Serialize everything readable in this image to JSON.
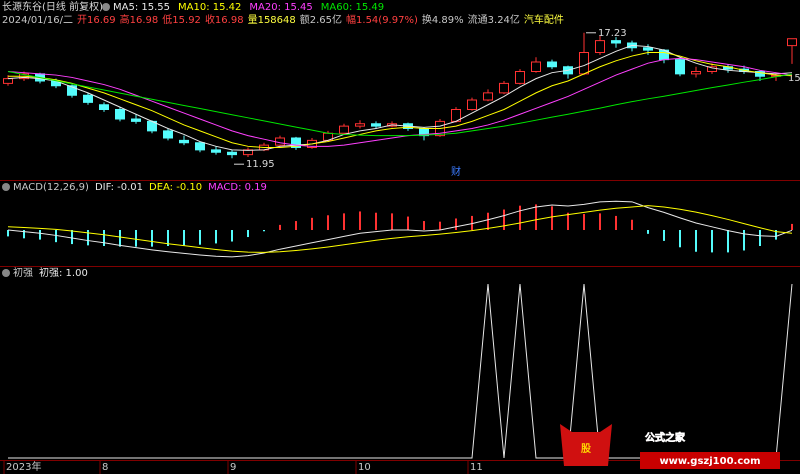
{
  "chart_data": [
    {
      "type": "candlestick",
      "title": "长源东谷(日线 前复权)",
      "info": [
        {
          "text": "2024/01/16/二",
          "color": "#c8c8c8"
        },
        {
          "text": "开16.69",
          "color": "#ff4040"
        },
        {
          "text": "高16.98",
          "color": "#ff4040"
        },
        {
          "text": "低15.92",
          "color": "#ff4040"
        },
        {
          "text": "收16.98",
          "color": "#ff4040"
        },
        {
          "text": "量158648",
          "color": "#ffff40"
        },
        {
          "text": "额2.65亿",
          "color": "#c8c8c8"
        },
        {
          "text": "幅1.54(9.97%)",
          "color": "#ff4040"
        },
        {
          "text": "换4.89%",
          "color": "#c8c8c8"
        },
        {
          "text": "流通3.24亿",
          "color": "#c8c8c8"
        },
        {
          "text": "汽车配件",
          "color": "#ffff40"
        }
      ],
      "up_color": "#ff3232",
      "down_color": "#54fcfc",
      "open": [
        15.1,
        15.3,
        15.5,
        15.2,
        15.0,
        14.6,
        14.2,
        14.0,
        13.6,
        13.5,
        13.1,
        12.7,
        12.6,
        12.3,
        12.2,
        12.1,
        12.3,
        12.5,
        12.8,
        12.4,
        12.7,
        13.0,
        13.3,
        13.4,
        13.3,
        13.4,
        13.2,
        12.9,
        13.5,
        14.0,
        14.4,
        14.7,
        15.1,
        15.6,
        16.0,
        15.8,
        15.5,
        16.4,
        16.9,
        16.8,
        16.6,
        16.5,
        16.1,
        15.5,
        15.6,
        15.8,
        15.7,
        15.6,
        15.4,
        16.69
      ],
      "high": [
        15.45,
        15.6,
        15.55,
        15.3,
        15.05,
        14.7,
        14.3,
        14.1,
        13.8,
        13.55,
        13.2,
        12.9,
        12.65,
        12.45,
        12.3,
        12.4,
        12.6,
        12.9,
        12.85,
        12.8,
        13.1,
        13.4,
        13.55,
        13.5,
        13.5,
        13.45,
        13.25,
        13.6,
        14.1,
        14.5,
        14.85,
        15.2,
        15.7,
        16.2,
        16.1,
        15.85,
        17.23,
        17.1,
        17.05,
        16.9,
        16.75,
        16.55,
        16.15,
        15.8,
        15.95,
        15.9,
        15.85,
        15.65,
        15.55,
        16.98
      ],
      "low": [
        15.0,
        15.2,
        15.1,
        14.9,
        14.5,
        14.2,
        13.9,
        13.5,
        13.4,
        13.0,
        12.7,
        12.5,
        12.2,
        12.1,
        11.95,
        12.0,
        12.25,
        12.45,
        12.3,
        12.35,
        12.65,
        12.95,
        13.2,
        13.2,
        13.25,
        13.1,
        12.7,
        12.85,
        13.45,
        13.95,
        14.35,
        14.65,
        15.05,
        15.55,
        15.7,
        15.3,
        15.45,
        16.3,
        16.6,
        16.45,
        16.3,
        15.95,
        15.4,
        15.35,
        15.5,
        15.55,
        15.5,
        15.2,
        15.2,
        15.92
      ],
      "close": [
        15.3,
        15.5,
        15.2,
        15.0,
        14.6,
        14.3,
        14.0,
        13.6,
        13.5,
        13.1,
        12.8,
        12.6,
        12.3,
        12.2,
        12.1,
        12.3,
        12.5,
        12.8,
        12.4,
        12.7,
        13.0,
        13.3,
        13.4,
        13.3,
        13.4,
        13.2,
        12.9,
        13.5,
        14.0,
        14.4,
        14.7,
        15.1,
        15.6,
        16.0,
        15.8,
        15.5,
        16.4,
        16.9,
        16.8,
        16.6,
        16.5,
        16.1,
        15.5,
        15.6,
        15.8,
        15.7,
        15.6,
        15.4,
        15.44,
        16.98
      ],
      "series": [
        {
          "name": "MA5: 15.55",
          "color": "#e8e8e8",
          "values": [
            15.3,
            15.35,
            15.3,
            15.2,
            14.95,
            14.7,
            14.4,
            14.1,
            13.8,
            13.5,
            13.2,
            12.95,
            12.65,
            12.45,
            12.3,
            12.28,
            12.3,
            12.45,
            12.5,
            12.55,
            12.7,
            12.95,
            13.1,
            13.2,
            13.35,
            13.3,
            13.25,
            13.3,
            13.5,
            13.85,
            14.2,
            14.55,
            14.95,
            15.3,
            15.55,
            15.65,
            15.85,
            16.15,
            16.45,
            16.7,
            16.65,
            16.5,
            16.2,
            15.95,
            15.75,
            15.65,
            15.6,
            15.55,
            15.5,
            15.55
          ]
        },
        {
          "name": "MA10: 15.42",
          "color": "#ffff00",
          "values": [
            15.4,
            15.4,
            15.35,
            15.25,
            15.1,
            14.9,
            14.7,
            14.45,
            14.2,
            13.95,
            13.65,
            13.35,
            13.1,
            12.85,
            12.6,
            12.45,
            12.4,
            12.4,
            12.45,
            12.55,
            12.65,
            12.8,
            12.95,
            13.1,
            13.2,
            13.25,
            13.2,
            13.2,
            13.3,
            13.5,
            13.75,
            14.0,
            14.35,
            14.7,
            15.0,
            15.2,
            15.5,
            15.8,
            16.05,
            16.25,
            16.4,
            16.4,
            16.25,
            16.05,
            15.9,
            15.8,
            15.65,
            15.55,
            15.45,
            15.42
          ]
        },
        {
          "name": "MA20: 15.45",
          "color": "#ff40ff",
          "values": [
            15.6,
            15.55,
            15.5,
            15.45,
            15.35,
            15.2,
            15.05,
            14.85,
            14.6,
            14.35,
            14.1,
            13.85,
            13.6,
            13.35,
            13.1,
            12.9,
            12.75,
            12.6,
            12.5,
            12.45,
            12.45,
            12.5,
            12.6,
            12.7,
            12.8,
            12.9,
            12.95,
            13.0,
            13.1,
            13.2,
            13.35,
            13.55,
            13.8,
            14.05,
            14.3,
            14.55,
            14.85,
            15.15,
            15.45,
            15.7,
            15.95,
            16.1,
            16.15,
            16.1,
            16.0,
            15.9,
            15.8,
            15.65,
            15.55,
            15.45
          ]
        },
        {
          "name": "MA60: 15.49",
          "color": "#00e600",
          "values": [
            15.6,
            15.47,
            15.34,
            15.21,
            15.08,
            14.95,
            14.82,
            14.69,
            14.56,
            14.43,
            14.3,
            14.17,
            14.04,
            13.91,
            13.78,
            13.65,
            13.52,
            13.39,
            13.26,
            13.13,
            13.0,
            12.95,
            12.92,
            12.9,
            12.9,
            12.9,
            12.92,
            12.95,
            13.0,
            13.1,
            13.2,
            13.3,
            13.42,
            13.55,
            13.68,
            13.8,
            13.93,
            14.06,
            14.2,
            14.33,
            14.45,
            14.56,
            14.68,
            14.8,
            14.92,
            15.03,
            15.15,
            15.26,
            15.38,
            15.49
          ]
        }
      ],
      "ylim": [
        11.2,
        17.6
      ],
      "annotations": [
        {
          "index": 14,
          "at": "low",
          "text": "11.95"
        },
        {
          "index": 36,
          "at": "high",
          "text": "17.23"
        }
      ],
      "event_marker": {
        "index": 28,
        "text": "财"
      },
      "edge_label": "15"
    },
    {
      "type": "macd",
      "title": "MACD(12,26,9)",
      "series": [
        {
          "name": "DIF: -0.01",
          "color": "#e8e8e8",
          "values": [
            0.0,
            -0.05,
            -0.1,
            -0.17,
            -0.25,
            -0.33,
            -0.4,
            -0.48,
            -0.55,
            -0.62,
            -0.68,
            -0.73,
            -0.78,
            -0.82,
            -0.84,
            -0.8,
            -0.72,
            -0.6,
            -0.5,
            -0.4,
            -0.3,
            -0.2,
            -0.1,
            -0.05,
            0.0,
            0.0,
            -0.03,
            0.0,
            0.1,
            0.2,
            0.32,
            0.45,
            0.6,
            0.72,
            0.78,
            0.75,
            0.8,
            0.88,
            0.9,
            0.88,
            0.7,
            0.55,
            0.38,
            0.22,
            0.1,
            -0.02,
            -0.12,
            -0.18,
            -0.2,
            -0.01
          ]
        },
        {
          "name": "DEA: -0.10",
          "color": "#ffff00",
          "values": [
            0.1,
            0.08,
            0.05,
            0.02,
            -0.03,
            -0.09,
            -0.15,
            -0.22,
            -0.29,
            -0.36,
            -0.43,
            -0.49,
            -0.55,
            -0.61,
            -0.66,
            -0.69,
            -0.7,
            -0.68,
            -0.64,
            -0.59,
            -0.53,
            -0.46,
            -0.39,
            -0.32,
            -0.26,
            -0.21,
            -0.17,
            -0.13,
            -0.08,
            -0.02,
            0.05,
            0.13,
            0.22,
            0.32,
            0.41,
            0.48,
            0.55,
            0.62,
            0.68,
            0.72,
            0.76,
            0.72,
            0.65,
            0.56,
            0.45,
            0.33,
            0.2,
            0.07,
            -0.05,
            -0.1
          ]
        }
      ],
      "histogram": {
        "name": "MACD: 0.19",
        "color": "#ff40ff",
        "up_color": "#ff3232",
        "down_color": "#54fcfc",
        "values": [
          -0.2,
          -0.26,
          -0.3,
          -0.38,
          -0.44,
          -0.48,
          -0.5,
          -0.52,
          -0.52,
          -0.52,
          -0.5,
          -0.48,
          -0.46,
          -0.42,
          -0.36,
          -0.22,
          -0.04,
          0.16,
          0.28,
          0.38,
          0.46,
          0.52,
          0.58,
          0.54,
          0.52,
          0.42,
          0.28,
          0.26,
          0.36,
          0.44,
          0.54,
          0.64,
          0.76,
          0.8,
          0.74,
          0.54,
          0.5,
          0.52,
          0.44,
          0.32,
          -0.12,
          -0.34,
          -0.54,
          -0.68,
          -0.7,
          -0.7,
          -0.64,
          -0.5,
          -0.3,
          0.19
        ]
      },
      "ylim": [
        -1,
        1
      ]
    },
    {
      "type": "line",
      "title": "初强",
      "series": [
        {
          "name": "初强: 1.00",
          "color": "#e8e8e8",
          "values": [
            0,
            0,
            0,
            0,
            0,
            0,
            0,
            0,
            0,
            0,
            0,
            0,
            0,
            0,
            0,
            0,
            0,
            0,
            0,
            0,
            0,
            0,
            0,
            0,
            0,
            0,
            0,
            0,
            0,
            0,
            1,
            0,
            1,
            0,
            0,
            0,
            1,
            0,
            0,
            0,
            0,
            0,
            0,
            0,
            0,
            0,
            0,
            0,
            0,
            1
          ]
        }
      ],
      "ylim": [
        0,
        1
      ],
      "xticks": [
        {
          "value": 0,
          "label": "2023年"
        },
        {
          "value": 6,
          "label": "8"
        },
        {
          "value": 14,
          "label": "9"
        },
        {
          "value": 22,
          "label": "10"
        },
        {
          "value": 29,
          "label": "11"
        }
      ]
    }
  ],
  "watermark": {
    "logo": "股",
    "name": "公式之家",
    "url": "www.gszj100.com"
  }
}
